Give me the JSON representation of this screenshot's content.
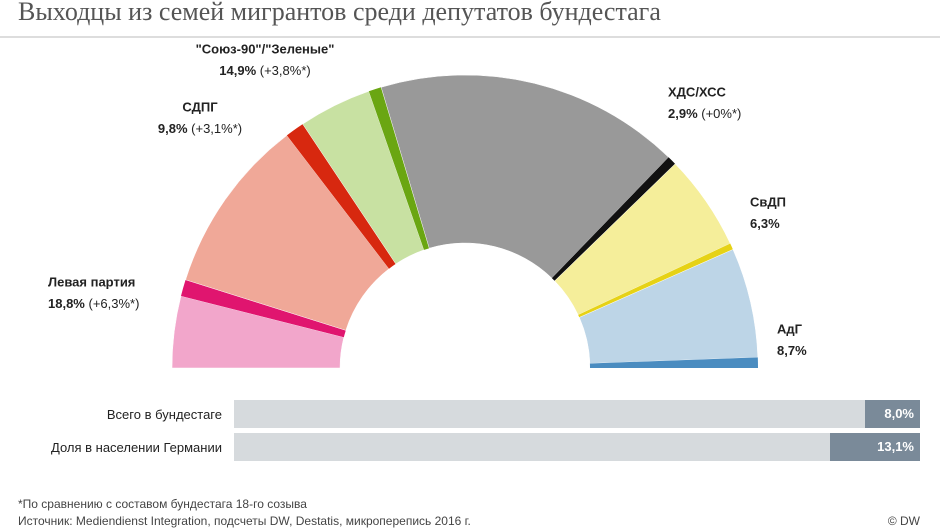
{
  "chart_data": {
    "type": "parliament",
    "title": "Выходцы из семей мигрантов среди депутатов бундестага",
    "parties": [
      {
        "name": "Левая партия",
        "seats": 69,
        "color": "#f2a6cb",
        "dark_color": "#e0156f",
        "value": 18.8,
        "value_label": "18,8%",
        "change": 6.3,
        "change_label": "(+6,3%*)"
      },
      {
        "name": "СДПГ",
        "seats": 153,
        "color": "#f0a898",
        "dark_color": "#d7280f",
        "value": 9.8,
        "value_label": "9,8%",
        "change": 3.1,
        "change_label": "(+3,1%*)"
      },
      {
        "name": "\"Союз-90\"/\"Зеленые\"",
        "seats": 67,
        "color": "#c8e1a2",
        "dark_color": "#6aa612",
        "value": 14.9,
        "value_label": "14,9%",
        "change": 3.8,
        "change_label": "(+3,8%*)"
      },
      {
        "name": "ХДС/ХСС",
        "seats": 246,
        "color": "#999999",
        "dark_color": "#111111",
        "value": 2.9,
        "value_label": "2,9%",
        "change": 0,
        "change_label": "(+0%*)"
      },
      {
        "name": "СвДП",
        "seats": 80,
        "color": "#f5ee9a",
        "dark_color": "#e6d216",
        "value": 6.3,
        "value_label": "6,3%"
      },
      {
        "name": "АдГ",
        "seats": 94,
        "color": "#bdd5e7",
        "dark_color": "#4a8cc0",
        "value": 8.7,
        "value_label": "8,7%"
      }
    ],
    "comparison": {
      "categories": [
        "Всего в бундестаге",
        "Доля в населении Германии"
      ],
      "values": [
        8.0,
        13.1
      ],
      "value_labels": [
        "8,0%",
        "13,1%"
      ],
      "xlim": [
        0,
        100
      ],
      "color": "#7a8a99",
      "track_color": "#d6dadd"
    },
    "footnote": "*По сравнению с составом бундестага 18-го созыва",
    "source": "Источник: Mediendienst Integration, подсчеты DW, Destatis, микроперепись 2016 г.",
    "credit": "© DW"
  }
}
